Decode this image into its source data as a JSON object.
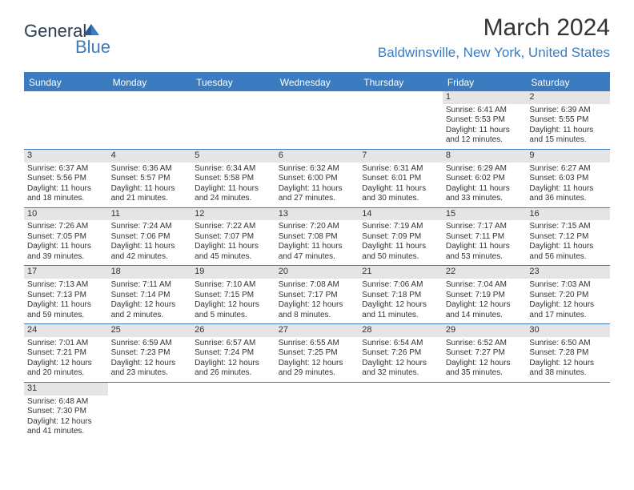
{
  "logo": {
    "text1": "General",
    "text2": "Blue"
  },
  "title": "March 2024",
  "location": "Baldwinsville, New York, United States",
  "colors": {
    "accent": "#3b7bbf",
    "dayHeaderBg": "#e5e5e5",
    "text": "#333333",
    "bg": "#ffffff"
  },
  "weekdays": [
    "Sunday",
    "Monday",
    "Tuesday",
    "Wednesday",
    "Thursday",
    "Friday",
    "Saturday"
  ],
  "weeks": [
    [
      null,
      null,
      null,
      null,
      null,
      {
        "n": "1",
        "sunrise": "Sunrise: 6:41 AM",
        "sunset": "Sunset: 5:53 PM",
        "daylight": "Daylight: 11 hours and 12 minutes."
      },
      {
        "n": "2",
        "sunrise": "Sunrise: 6:39 AM",
        "sunset": "Sunset: 5:55 PM",
        "daylight": "Daylight: 11 hours and 15 minutes."
      }
    ],
    [
      {
        "n": "3",
        "sunrise": "Sunrise: 6:37 AM",
        "sunset": "Sunset: 5:56 PM",
        "daylight": "Daylight: 11 hours and 18 minutes."
      },
      {
        "n": "4",
        "sunrise": "Sunrise: 6:36 AM",
        "sunset": "Sunset: 5:57 PM",
        "daylight": "Daylight: 11 hours and 21 minutes."
      },
      {
        "n": "5",
        "sunrise": "Sunrise: 6:34 AM",
        "sunset": "Sunset: 5:58 PM",
        "daylight": "Daylight: 11 hours and 24 minutes."
      },
      {
        "n": "6",
        "sunrise": "Sunrise: 6:32 AM",
        "sunset": "Sunset: 6:00 PM",
        "daylight": "Daylight: 11 hours and 27 minutes."
      },
      {
        "n": "7",
        "sunrise": "Sunrise: 6:31 AM",
        "sunset": "Sunset: 6:01 PM",
        "daylight": "Daylight: 11 hours and 30 minutes."
      },
      {
        "n": "8",
        "sunrise": "Sunrise: 6:29 AM",
        "sunset": "Sunset: 6:02 PM",
        "daylight": "Daylight: 11 hours and 33 minutes."
      },
      {
        "n": "9",
        "sunrise": "Sunrise: 6:27 AM",
        "sunset": "Sunset: 6:03 PM",
        "daylight": "Daylight: 11 hours and 36 minutes."
      }
    ],
    [
      {
        "n": "10",
        "sunrise": "Sunrise: 7:26 AM",
        "sunset": "Sunset: 7:05 PM",
        "daylight": "Daylight: 11 hours and 39 minutes."
      },
      {
        "n": "11",
        "sunrise": "Sunrise: 7:24 AM",
        "sunset": "Sunset: 7:06 PM",
        "daylight": "Daylight: 11 hours and 42 minutes."
      },
      {
        "n": "12",
        "sunrise": "Sunrise: 7:22 AM",
        "sunset": "Sunset: 7:07 PM",
        "daylight": "Daylight: 11 hours and 45 minutes."
      },
      {
        "n": "13",
        "sunrise": "Sunrise: 7:20 AM",
        "sunset": "Sunset: 7:08 PM",
        "daylight": "Daylight: 11 hours and 47 minutes."
      },
      {
        "n": "14",
        "sunrise": "Sunrise: 7:19 AM",
        "sunset": "Sunset: 7:09 PM",
        "daylight": "Daylight: 11 hours and 50 minutes."
      },
      {
        "n": "15",
        "sunrise": "Sunrise: 7:17 AM",
        "sunset": "Sunset: 7:11 PM",
        "daylight": "Daylight: 11 hours and 53 minutes."
      },
      {
        "n": "16",
        "sunrise": "Sunrise: 7:15 AM",
        "sunset": "Sunset: 7:12 PM",
        "daylight": "Daylight: 11 hours and 56 minutes."
      }
    ],
    [
      {
        "n": "17",
        "sunrise": "Sunrise: 7:13 AM",
        "sunset": "Sunset: 7:13 PM",
        "daylight": "Daylight: 11 hours and 59 minutes."
      },
      {
        "n": "18",
        "sunrise": "Sunrise: 7:11 AM",
        "sunset": "Sunset: 7:14 PM",
        "daylight": "Daylight: 12 hours and 2 minutes."
      },
      {
        "n": "19",
        "sunrise": "Sunrise: 7:10 AM",
        "sunset": "Sunset: 7:15 PM",
        "daylight": "Daylight: 12 hours and 5 minutes."
      },
      {
        "n": "20",
        "sunrise": "Sunrise: 7:08 AM",
        "sunset": "Sunset: 7:17 PM",
        "daylight": "Daylight: 12 hours and 8 minutes."
      },
      {
        "n": "21",
        "sunrise": "Sunrise: 7:06 AM",
        "sunset": "Sunset: 7:18 PM",
        "daylight": "Daylight: 12 hours and 11 minutes."
      },
      {
        "n": "22",
        "sunrise": "Sunrise: 7:04 AM",
        "sunset": "Sunset: 7:19 PM",
        "daylight": "Daylight: 12 hours and 14 minutes."
      },
      {
        "n": "23",
        "sunrise": "Sunrise: 7:03 AM",
        "sunset": "Sunset: 7:20 PM",
        "daylight": "Daylight: 12 hours and 17 minutes."
      }
    ],
    [
      {
        "n": "24",
        "sunrise": "Sunrise: 7:01 AM",
        "sunset": "Sunset: 7:21 PM",
        "daylight": "Daylight: 12 hours and 20 minutes."
      },
      {
        "n": "25",
        "sunrise": "Sunrise: 6:59 AM",
        "sunset": "Sunset: 7:23 PM",
        "daylight": "Daylight: 12 hours and 23 minutes."
      },
      {
        "n": "26",
        "sunrise": "Sunrise: 6:57 AM",
        "sunset": "Sunset: 7:24 PM",
        "daylight": "Daylight: 12 hours and 26 minutes."
      },
      {
        "n": "27",
        "sunrise": "Sunrise: 6:55 AM",
        "sunset": "Sunset: 7:25 PM",
        "daylight": "Daylight: 12 hours and 29 minutes."
      },
      {
        "n": "28",
        "sunrise": "Sunrise: 6:54 AM",
        "sunset": "Sunset: 7:26 PM",
        "daylight": "Daylight: 12 hours and 32 minutes."
      },
      {
        "n": "29",
        "sunrise": "Sunrise: 6:52 AM",
        "sunset": "Sunset: 7:27 PM",
        "daylight": "Daylight: 12 hours and 35 minutes."
      },
      {
        "n": "30",
        "sunrise": "Sunrise: 6:50 AM",
        "sunset": "Sunset: 7:28 PM",
        "daylight": "Daylight: 12 hours and 38 minutes."
      }
    ],
    [
      {
        "n": "31",
        "sunrise": "Sunrise: 6:48 AM",
        "sunset": "Sunset: 7:30 PM",
        "daylight": "Daylight: 12 hours and 41 minutes."
      },
      null,
      null,
      null,
      null,
      null,
      null
    ]
  ]
}
